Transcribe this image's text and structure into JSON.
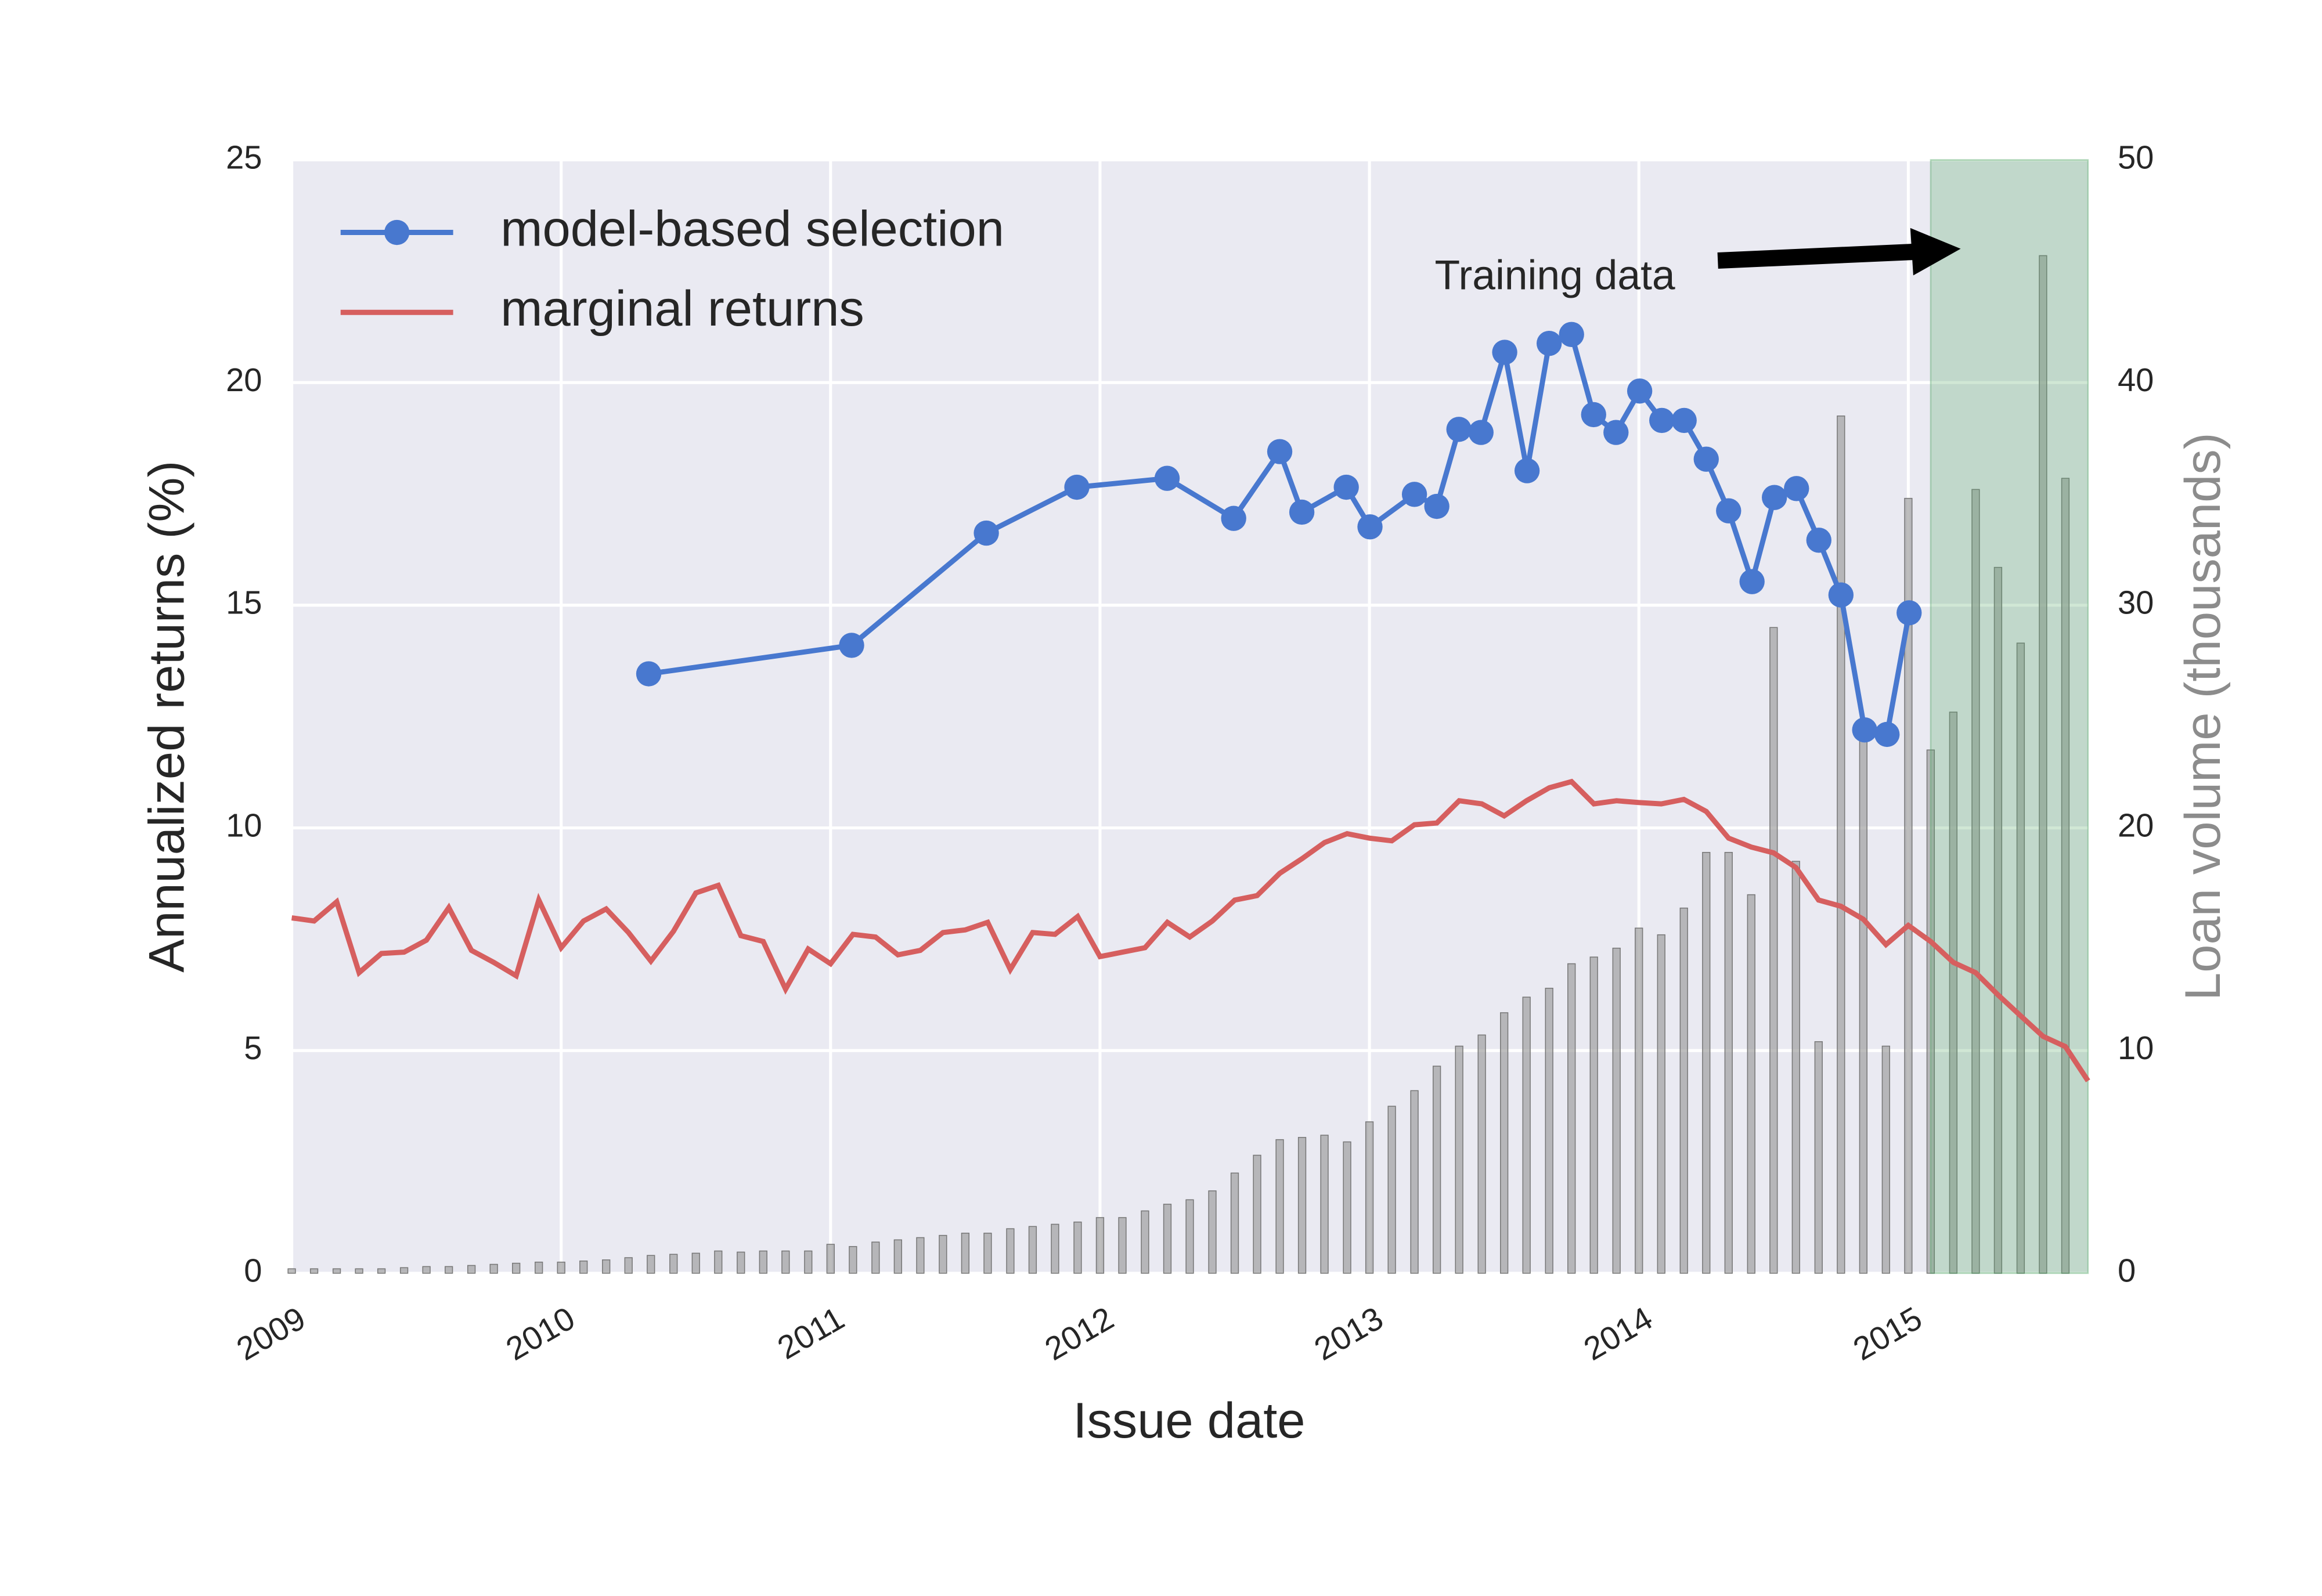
{
  "chart_data": {
    "type": "line",
    "xlabel": "Issue date",
    "ylabel": "Annualized returns (%)",
    "y2label": "Loan volume (thousands)",
    "annotation": "Training data",
    "xlim": [
      2009,
      2015.667
    ],
    "xticks": [
      2009,
      2010,
      2011,
      2012,
      2013,
      2014,
      2015
    ],
    "ylim": [
      0,
      25
    ],
    "yticks": [
      0,
      5,
      10,
      15,
      20,
      25
    ],
    "y2lim": [
      0,
      50
    ],
    "y2ticks": [
      0,
      10,
      20,
      30,
      40,
      50
    ],
    "grid": true,
    "legend": "upper left",
    "shaded_region": {
      "xlim": [
        2015.083,
        2015.667
      ],
      "color": "#55a868"
    },
    "series": [
      {
        "type": "bar",
        "axis": "y2",
        "color": "#999999",
        "x": [
          2009,
          2009.083,
          2009.167,
          2009.25,
          2009.333,
          2009.417,
          2009.5,
          2009.583,
          2009.667,
          2009.75,
          2009.833,
          2009.917,
          2010,
          2010.083,
          2010.167,
          2010.25,
          2010.333,
          2010.417,
          2010.5,
          2010.583,
          2010.667,
          2010.75,
          2010.833,
          2010.917,
          2011,
          2011.083,
          2011.167,
          2011.25,
          2011.333,
          2011.417,
          2011.5,
          2011.583,
          2011.667,
          2011.75,
          2011.833,
          2011.917,
          2012,
          2012.083,
          2012.167,
          2012.25,
          2012.333,
          2012.417,
          2012.5,
          2012.583,
          2012.667,
          2012.75,
          2012.833,
          2012.917,
          2013,
          2013.083,
          2013.167,
          2013.25,
          2013.333,
          2013.417,
          2013.5,
          2013.583,
          2013.667,
          2013.75,
          2013.833,
          2013.917,
          2014,
          2014.083,
          2014.167,
          2014.25,
          2014.333,
          2014.417,
          2014.5,
          2014.583,
          2014.667,
          2014.75,
          2014.833,
          2014.917,
          2015,
          2015.083,
          2015.167,
          2015.25,
          2015.333,
          2015.417,
          2015.5,
          2015.583
        ],
        "values": [
          0.2,
          0.2,
          0.2,
          0.2,
          0.2,
          0.25,
          0.3,
          0.3,
          0.35,
          0.4,
          0.45,
          0.5,
          0.5,
          0.55,
          0.6,
          0.7,
          0.8,
          0.85,
          0.9,
          1.0,
          0.95,
          1.0,
          1.0,
          1.0,
          1.3,
          1.2,
          1.4,
          1.5,
          1.6,
          1.7,
          1.8,
          1.8,
          2.0,
          2.1,
          2.2,
          2.3,
          2.5,
          2.5,
          2.8,
          3.1,
          3.3,
          3.7,
          4.5,
          5.3,
          6.0,
          6.1,
          6.2,
          5.9,
          6.8,
          7.5,
          8.2,
          9.3,
          10.2,
          10.7,
          11.7,
          12.4,
          12.8,
          13.9,
          14.2,
          14.6,
          15.5,
          15.2,
          16.4,
          18.9,
          18.9,
          17.0,
          29.0,
          18.5,
          10.4,
          38.5,
          24.5,
          10.2,
          34.8,
          23.5,
          25.2,
          35.2,
          31.7,
          28.3,
          45.7,
          35.7
        ]
      },
      {
        "type": "line",
        "name": "marginal returns",
        "color": "#d65f5f",
        "x": [
          2009,
          2009.083,
          2009.167,
          2009.25,
          2009.333,
          2009.417,
          2009.5,
          2009.583,
          2009.667,
          2009.75,
          2009.833,
          2009.917,
          2010,
          2010.083,
          2010.167,
          2010.25,
          2010.333,
          2010.417,
          2010.5,
          2010.583,
          2010.667,
          2010.75,
          2010.833,
          2010.917,
          2011,
          2011.083,
          2011.167,
          2011.25,
          2011.333,
          2011.417,
          2011.5,
          2011.583,
          2011.667,
          2011.75,
          2011.833,
          2011.917,
          2012,
          2012.083,
          2012.167,
          2012.25,
          2012.333,
          2012.417,
          2012.5,
          2012.583,
          2012.667,
          2012.75,
          2012.833,
          2012.917,
          2013,
          2013.083,
          2013.167,
          2013.25,
          2013.333,
          2013.417,
          2013.5,
          2013.583,
          2013.667,
          2013.75,
          2013.833,
          2013.917,
          2014,
          2014.083,
          2014.167,
          2014.25,
          2014.333,
          2014.417,
          2014.5,
          2014.583,
          2014.667,
          2014.75,
          2014.833,
          2014.917,
          2015,
          2015.083,
          2015.167,
          2015.25,
          2015.333,
          2015.417,
          2015.5,
          2015.583,
          2015.667
        ],
        "values": [
          7.98,
          7.91,
          8.34,
          6.75,
          7.18,
          7.21,
          7.48,
          8.21,
          7.25,
          6.98,
          6.68,
          8.38,
          7.31,
          7.91,
          8.18,
          7.65,
          7.01,
          7.68,
          8.54,
          8.71,
          7.58,
          7.45,
          6.38,
          7.28,
          6.95,
          7.61,
          7.55,
          7.15,
          7.25,
          7.65,
          7.71,
          7.88,
          6.82,
          7.65,
          7.61,
          8.01,
          7.11,
          7.21,
          7.31,
          7.88,
          7.55,
          7.91,
          8.38,
          8.48,
          8.98,
          9.31,
          9.67,
          9.87,
          9.77,
          9.71,
          10.07,
          10.11,
          10.61,
          10.54,
          10.27,
          10.61,
          10.9,
          11.04,
          10.54,
          10.61,
          10.57,
          10.54,
          10.64,
          10.37,
          9.77,
          9.57,
          9.44,
          9.11,
          8.38,
          8.24,
          7.95,
          7.38,
          7.81,
          7.45,
          6.98,
          6.75,
          6.25,
          5.78,
          5.32,
          5.09,
          4.32
        ]
      },
      {
        "type": "line",
        "name": "model-based selection",
        "color": "#4878cf",
        "marker": true,
        "x": [
          2010.325,
          2011.078,
          2011.578,
          2011.914,
          2012.249,
          2012.496,
          2012.667,
          2012.749,
          2012.914,
          2013.002,
          2013.167,
          2013.25,
          2013.332,
          2013.414,
          2013.502,
          2013.585,
          2013.667,
          2013.75,
          2013.832,
          2013.915,
          2014.003,
          2014.085,
          2014.168,
          2014.25,
          2014.333,
          2014.42,
          2014.503,
          2014.585,
          2014.668,
          2014.75,
          2014.838,
          2014.921,
          2015.003
        ],
        "values": [
          13.46,
          14.1,
          16.62,
          17.65,
          17.85,
          16.95,
          18.45,
          17.09,
          17.65,
          16.76,
          17.49,
          17.22,
          18.95,
          18.88,
          20.68,
          18.02,
          20.88,
          21.08,
          19.28,
          18.88,
          19.81,
          19.15,
          19.15,
          18.28,
          17.12,
          15.53,
          17.42,
          17.62,
          16.46,
          15.23,
          12.2,
          12.1,
          14.83
        ]
      }
    ]
  }
}
